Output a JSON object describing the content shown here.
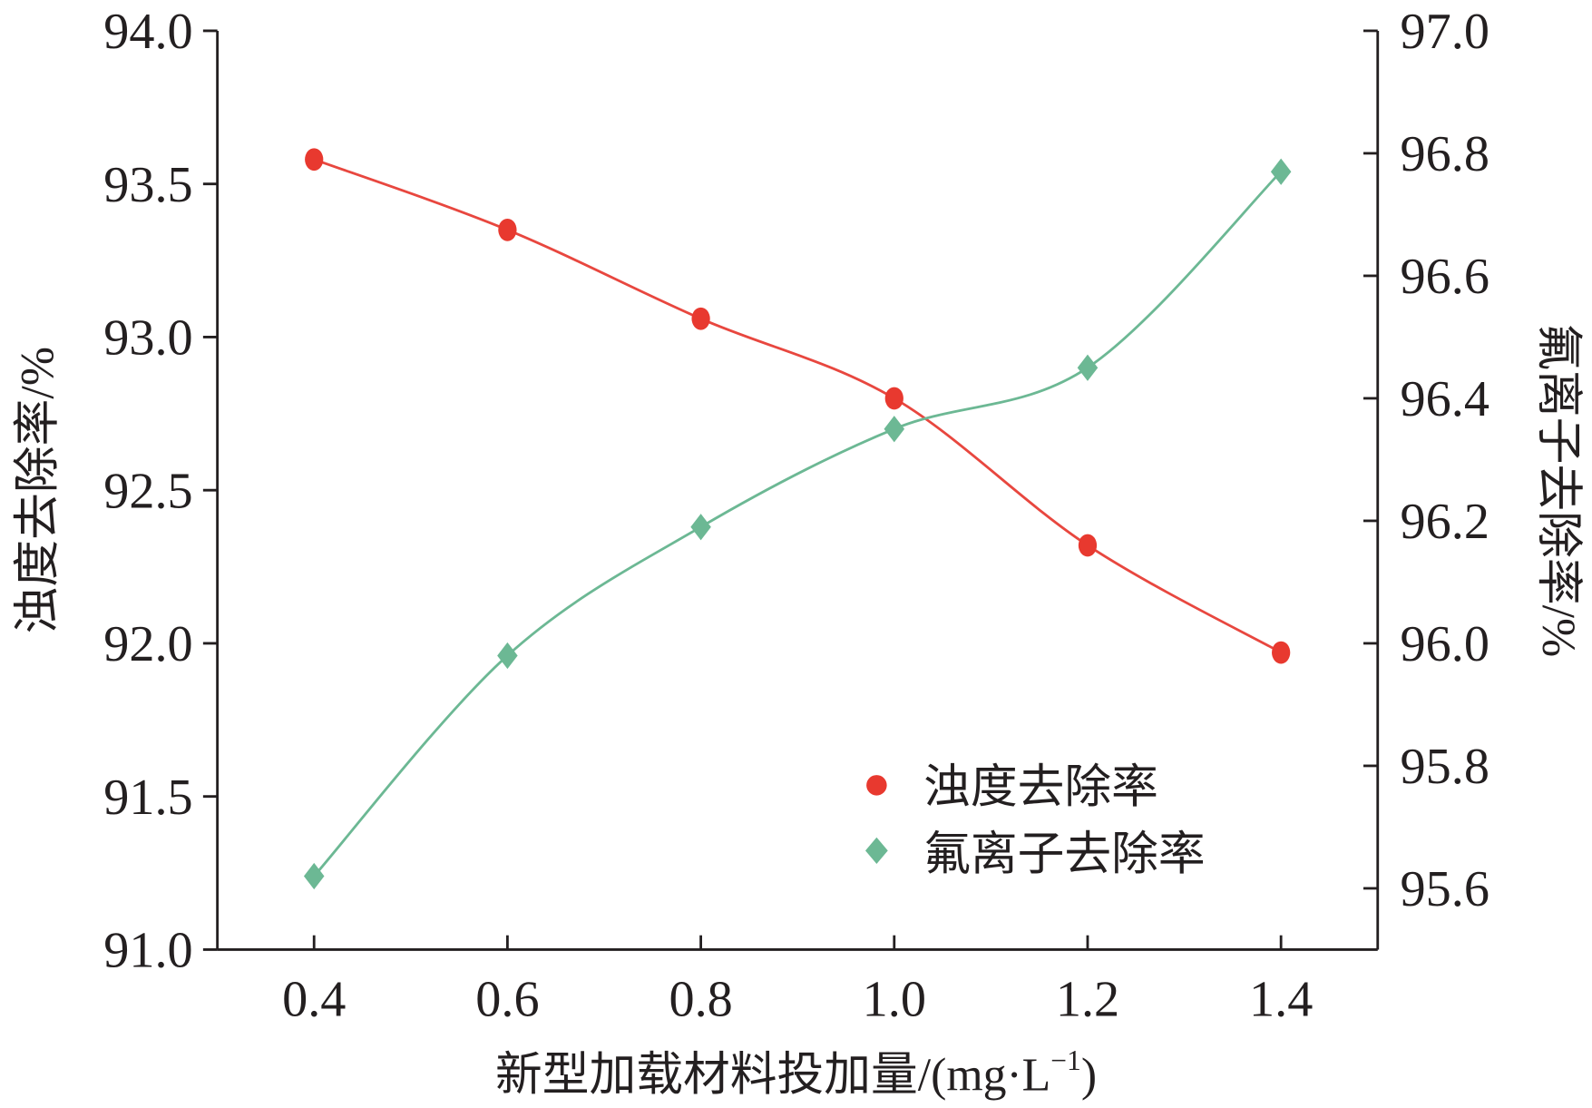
{
  "chart_data": {
    "type": "line",
    "x": [
      0.4,
      0.6,
      0.8,
      1.0,
      1.2,
      1.4
    ],
    "xlabel": "新型加载材料投加量/(mg·L",
    "xlabel_sup": "−1",
    "xlabel_end": ")",
    "ylabel_left": "浊度去除率/%",
    "ylabel_right": "氟离子去除率/%",
    "xlim": [
      0.3,
      1.5
    ],
    "ylim_left": [
      91.0,
      94.0
    ],
    "ylim_right": [
      95.5,
      97.0
    ],
    "xticks": [
      "0.4",
      "0.6",
      "0.8",
      "1.0",
      "1.2",
      "1.4"
    ],
    "yticks_left": [
      "91.0",
      "91.5",
      "92.0",
      "92.5",
      "93.0",
      "93.5",
      "94.0"
    ],
    "yticks_right": [
      "95.6",
      "95.8",
      "96.0",
      "96.2",
      "96.4",
      "96.6",
      "96.8",
      "97.0"
    ],
    "grid": false,
    "legend_position": "bottom-right",
    "series": [
      {
        "name": "浊度去除率",
        "axis": "left",
        "marker": "circle",
        "color": "#e8392f",
        "line_color": "#e8473f",
        "values": [
          93.58,
          93.35,
          93.06,
          92.8,
          92.32,
          91.97
        ]
      },
      {
        "name": "氟离子去除率",
        "axis": "right",
        "marker": "diamond",
        "color": "#6cb894",
        "line_color": "#6cb894",
        "values": [
          95.62,
          95.98,
          96.19,
          96.35,
          96.45,
          96.77
        ]
      }
    ]
  }
}
